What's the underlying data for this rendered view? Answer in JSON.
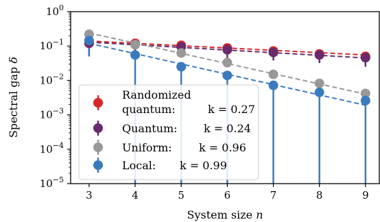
{
  "chart_data": {
    "type": "scatter",
    "xlabel": "System size",
    "xlabel_var": "n",
    "ylabel": "Spectral gap",
    "ylabel_var": "δ",
    "yscale": "log",
    "xlim": [
      2.6,
      9.3
    ],
    "ylim": [
      1e-05,
      1
    ],
    "x_ticks": [
      "3",
      "4",
      "5",
      "6",
      "7",
      "8",
      "9"
    ],
    "y_ticks": [
      {
        "base": "10",
        "exp": "0"
      },
      {
        "base": "10",
        "exp": "−1"
      },
      {
        "base": "10",
        "exp": "−2"
      },
      {
        "base": "10",
        "exp": "−3"
      },
      {
        "base": "10",
        "exp": "−4"
      },
      {
        "base": "10",
        "exp": "−5"
      }
    ],
    "legend_position": "lower-left",
    "x": [
      3,
      4,
      5,
      6,
      7,
      8,
      9
    ],
    "series": [
      {
        "label_line1": "Randomized",
        "label_line2": " quantum:",
        "k_label": "k = 0.27",
        "color": "#d62728",
        "values": [
          0.13,
          0.12,
          0.105,
          0.088,
          0.072,
          0.059,
          0.05
        ],
        "err_low": [
          0.08,
          0.085,
          0.08,
          0.065,
          0.052,
          0.042,
          0.035
        ],
        "err_high": [
          0.17,
          0.155,
          0.13,
          0.11,
          0.09,
          0.075,
          0.064
        ],
        "fit": [
          0.14,
          0.055
        ]
      },
      {
        "label_line1": "Quantum:",
        "k_label": "k = 0.24",
        "color": "#6b2a6b",
        "values": [
          0.12,
          0.11,
          0.095,
          0.078,
          0.065,
          0.055,
          0.046
        ],
        "err_low": [
          0.05,
          0.06,
          0.055,
          0.045,
          0.038,
          0.032,
          0.025
        ],
        "err_high": [
          0.16,
          0.14,
          0.12,
          0.1,
          0.085,
          0.07,
          0.058
        ],
        "fit": [
          0.13,
          0.045
        ]
      },
      {
        "label_line1": "Uniform:",
        "k_label": "k = 0.96",
        "color": "#999999",
        "values": [
          0.22,
          0.11,
          0.063,
          0.033,
          0.015,
          0.0082,
          0.0042
        ],
        "err_low": [
          0.2,
          0.1,
          0.058,
          0.031,
          0.0135,
          0.0072,
          0.0036
        ],
        "err_high": [
          0.25,
          0.12,
          0.07,
          0.036,
          0.017,
          0.0092,
          0.0048
        ],
        "fit": [
          0.24,
          0.004
        ]
      },
      {
        "label_line1": "Local:",
        "k_label": "k = 0.99",
        "color": "#3a7bbf",
        "values": [
          0.145,
          0.055,
          0.025,
          0.014,
          0.0072,
          0.0045,
          0.0026
        ],
        "err_low": [
          0.05,
          1e-05,
          1e-05,
          1e-05,
          1e-05,
          1e-05,
          1e-05
        ],
        "err_high": [
          0.2,
          0.075,
          0.033,
          0.018,
          0.0092,
          0.0055,
          0.0031
        ],
        "fit": [
          0.12,
          0.0019
        ]
      }
    ]
  }
}
